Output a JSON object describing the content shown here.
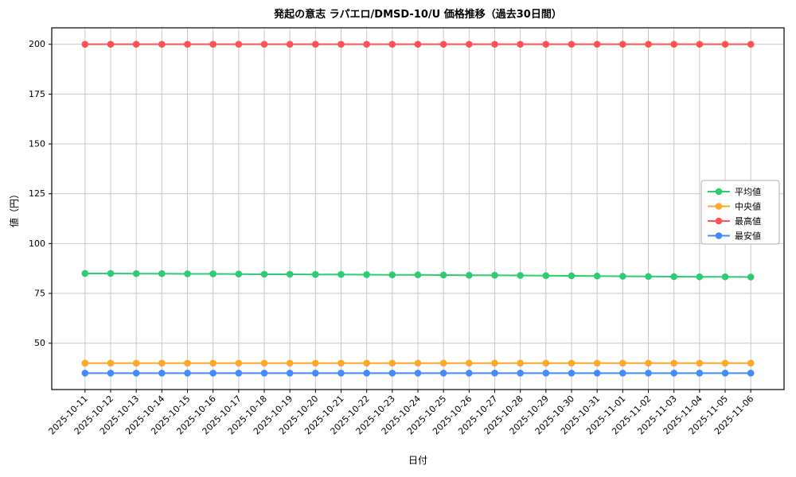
{
  "page": {
    "background": "#ffffff"
  },
  "chart_data": {
    "type": "line",
    "title": "発起の意志 ラパエロ/DMSD-10/U 価格推移（過去30日間）",
    "xlabel": "日付",
    "ylabel": "値（円）",
    "x": [
      "2025-10-11",
      "2025-10-12",
      "2025-10-13",
      "2025-10-14",
      "2025-10-15",
      "2025-10-16",
      "2025-10-17",
      "2025-10-18",
      "2025-10-19",
      "2025-10-20",
      "2025-10-21",
      "2025-10-22",
      "2025-10-23",
      "2025-10-24",
      "2025-10-25",
      "2025-10-26",
      "2025-10-27",
      "2025-10-28",
      "2025-10-29",
      "2025-10-30",
      "2025-10-31",
      "2025-11-01",
      "2025-11-02",
      "2025-11-03",
      "2025-11-04",
      "2025-11-05",
      "2025-11-06"
    ],
    "series": [
      {
        "name": "平均値",
        "color": "#2ecc71",
        "values": [
          85.0,
          85.0,
          84.9,
          84.9,
          84.8,
          84.8,
          84.7,
          84.6,
          84.6,
          84.5,
          84.5,
          84.4,
          84.3,
          84.3,
          84.2,
          84.1,
          84.1,
          84.0,
          83.9,
          83.8,
          83.7,
          83.6,
          83.5,
          83.4,
          83.3,
          83.3,
          83.2
        ]
      },
      {
        "name": "中央値",
        "color": "#ffa726",
        "values": [
          40,
          40,
          40,
          40,
          40,
          40,
          40,
          40,
          40,
          40,
          40,
          40,
          40,
          40,
          40,
          40,
          40,
          40,
          40,
          40,
          40,
          40,
          40,
          40,
          40,
          40,
          40
        ]
      },
      {
        "name": "最高値",
        "color": "#ff5252",
        "values": [
          200,
          200,
          200,
          200,
          200,
          200,
          200,
          200,
          200,
          200,
          200,
          200,
          200,
          200,
          200,
          200,
          200,
          200,
          200,
          200,
          200,
          200,
          200,
          200,
          200,
          200,
          200
        ]
      },
      {
        "name": "最安値",
        "color": "#448aff",
        "values": [
          35,
          35,
          35,
          35,
          35,
          35,
          35,
          35,
          35,
          35,
          35,
          35,
          35,
          35,
          35,
          35,
          35,
          35,
          35,
          35,
          35,
          35,
          35,
          35,
          35,
          35,
          35
        ]
      }
    ],
    "ylim": [
      26.75,
      208.25
    ],
    "yticks": [
      50,
      75,
      100,
      125,
      150,
      175,
      200
    ],
    "grid": true,
    "legend_position": "center-right",
    "grid_color": "#c8c8c8",
    "spine_color": "#000000"
  }
}
